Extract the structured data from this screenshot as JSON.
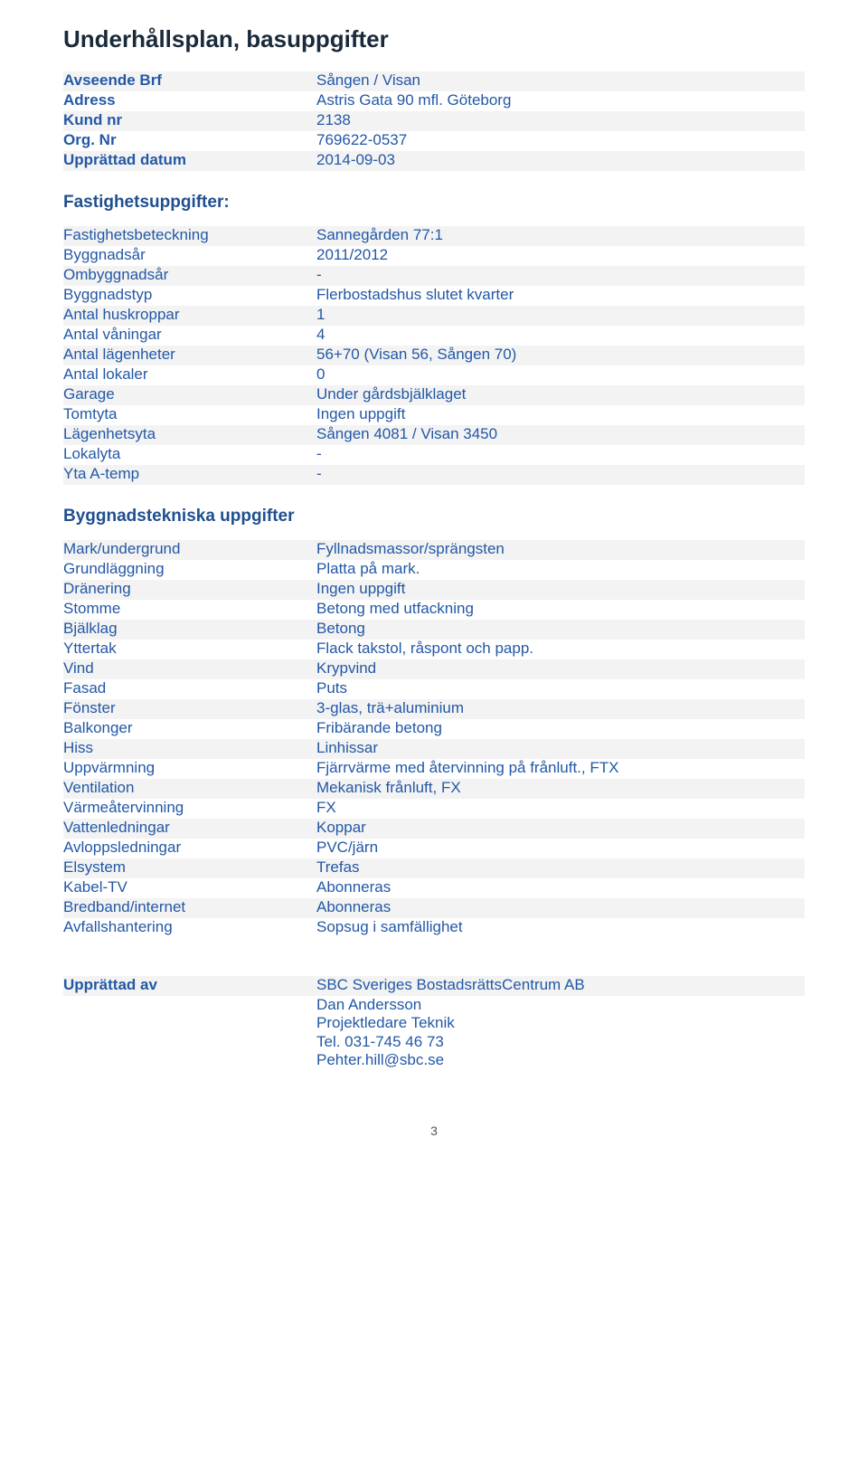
{
  "page": {
    "title": "Underhållsplan, basuppgifter",
    "page_number": "3"
  },
  "colors": {
    "heading": "#1a2a3a",
    "section": "#1f4f8f",
    "text": "#2358a6",
    "stripe": "#f3f3f3",
    "background": "#ffffff"
  },
  "block1": {
    "rows": [
      {
        "label": "Avseende Brf",
        "value": "Sången / Visan"
      },
      {
        "label": "Adress",
        "value": "Astris Gata 90 mfl. Göteborg"
      },
      {
        "label": "Kund nr",
        "value": "2138"
      },
      {
        "label": "Org. Nr",
        "value": "769622-0537"
      },
      {
        "label": "Upprättad datum",
        "value": "2014-09-03"
      }
    ]
  },
  "section_fastighet": {
    "title": "Fastighetsuppgifter:",
    "rows": [
      {
        "label": "Fastighetsbeteckning",
        "value": "Sannegården 77:1"
      },
      {
        "label": "Byggnadsår",
        "value": "2011/2012"
      },
      {
        "label": "Ombyggnadsår",
        "value": "-"
      },
      {
        "label": "Byggnadstyp",
        "value": "Flerbostadshus slutet kvarter"
      },
      {
        "label": "Antal huskroppar",
        "value": "1"
      },
      {
        "label": "Antal våningar",
        "value": "4"
      },
      {
        "label": "Antal lägenheter",
        "value": "56+70 (Visan 56, Sången 70)"
      },
      {
        "label": "Antal lokaler",
        "value": "0"
      },
      {
        "label": "Garage",
        "value": "Under gårdsbjälklaget"
      },
      {
        "label": "Tomtyta",
        "value": "Ingen uppgift"
      },
      {
        "label": "Lägenhetsyta",
        "value": "Sången 4081 / Visan 3450"
      },
      {
        "label": "Lokalyta",
        "value": "-"
      },
      {
        "label": "Yta A-temp",
        "value": "-"
      }
    ]
  },
  "section_bygg": {
    "title": "Byggnadstekniska uppgifter",
    "rows": [
      {
        "label": "Mark/undergrund",
        "value": "Fyllnadsmassor/sprängsten"
      },
      {
        "label": "Grundläggning",
        "value": "Platta på mark."
      },
      {
        "label": "Dränering",
        "value": "Ingen uppgift"
      },
      {
        "label": "Stomme",
        "value": "Betong med utfackning"
      },
      {
        "label": "Bjälklag",
        "value": "Betong"
      },
      {
        "label": "Yttertak",
        "value": "Flack takstol, råspont och papp."
      },
      {
        "label": "Vind",
        "value": "Krypvind"
      },
      {
        "label": "Fasad",
        "value": "Puts"
      },
      {
        "label": "Fönster",
        "value": "3-glas, trä+aluminium"
      },
      {
        "label": "Balkonger",
        "value": "Fribärande betong"
      },
      {
        "label": "Hiss",
        "value": "Linhissar"
      },
      {
        "label": "Uppvärmning",
        "value": "Fjärrvärme med återvinning på frånluft., FTX"
      },
      {
        "label": "Ventilation",
        "value": "Mekanisk frånluft, FX"
      },
      {
        "label": "Värmeåtervinning",
        "value": "FX"
      },
      {
        "label": "Vattenledningar",
        "value": "Koppar"
      },
      {
        "label": "Avloppsledningar",
        "value": "PVC/järn"
      },
      {
        "label": "Elsystem",
        "value": "Trefas"
      },
      {
        "label": "Kabel-TV",
        "value": "Abonneras"
      },
      {
        "label": "Bredband/internet",
        "value": "Abonneras"
      },
      {
        "label": "Avfallshantering",
        "value": "Sopsug i samfällighet"
      }
    ]
  },
  "footer": {
    "label": "Upprättad av",
    "lines": [
      "SBC Sveriges BostadsrättsCentrum AB",
      "Dan Andersson",
      "Projektledare Teknik",
      "Tel. 031-745 46 73",
      "Pehter.hill@sbc.se"
    ]
  }
}
